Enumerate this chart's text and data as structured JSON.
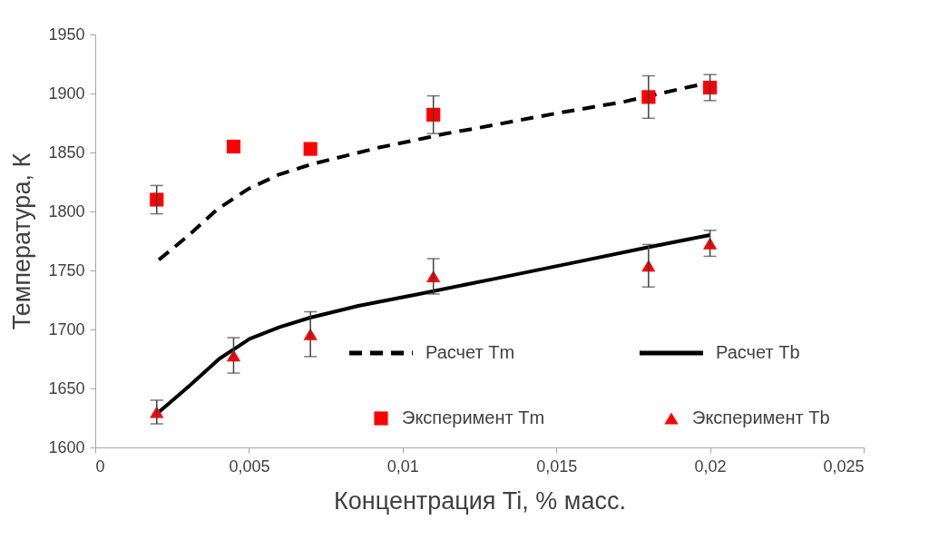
{
  "chart_data": {
    "type": "line",
    "xlabel": "Концентрация Ti, % масс.",
    "ylabel": "Температура, К",
    "xlim": [
      0,
      0.025
    ],
    "xticks": [
      0,
      {
        "value": 0.005,
        "label": "0,005"
      },
      {
        "value": 0.01,
        "label": "0,01"
      },
      {
        "value": 0.015,
        "label": "0,015"
      },
      {
        "value": 0.02,
        "label": "0,02"
      },
      {
        "value": 0.025,
        "label": "0,025"
      }
    ],
    "ylim": [
      1600,
      1950
    ],
    "yticks": [
      1600,
      1650,
      1700,
      1750,
      1800,
      1850,
      1900,
      1950
    ],
    "grid": false,
    "legend": "bottom right",
    "series": [
      {
        "name": "Расчет Tm",
        "line_style": "dashed",
        "color": "#000000",
        "x": [
          0.00207,
          0.00305,
          0.00398,
          0.00497,
          0.00595,
          0.00703,
          0.00812,
          0.0092,
          0.01033,
          0.0114,
          0.0125,
          0.01496,
          0.0172,
          0.0194,
          0.02
        ],
        "values": [
          1759,
          1780,
          1802,
          1819,
          1831,
          1840,
          1847,
          1854,
          1860,
          1866,
          1871,
          1883,
          1893,
          1906,
          1909
        ]
      },
      {
        "name": "Расчет Tb",
        "line_style": "solid",
        "color": "#000000",
        "x": [
          0.00207,
          0.00305,
          0.00403,
          0.00502,
          0.006,
          0.00699,
          0.00856,
          0.01053,
          0.013,
          0.01564,
          0.01805,
          0.02
        ],
        "values": [
          1630,
          1652,
          1675,
          1692,
          1702,
          1710,
          1720,
          1730,
          1743,
          1757,
          1770,
          1780
        ]
      },
      {
        "name": "Эксперимент Tm",
        "type": "scatter",
        "marker": "square",
        "color": "#ff0000",
        "x": [
          0.002,
          0.0045,
          0.007,
          0.011,
          0.018,
          0.02
        ],
        "values": [
          1810,
          1855,
          1853,
          1882,
          1897,
          1905
        ],
        "errors": [
          12,
          null,
          null,
          16,
          18,
          11
        ]
      },
      {
        "name": "Эксперимент Tb",
        "type": "scatter",
        "marker": "triangle",
        "color": "#ff0000",
        "x": [
          0.002,
          0.0045,
          0.007,
          0.011,
          0.018,
          0.02
        ],
        "values": [
          1630,
          1678,
          1696,
          1745,
          1754,
          1773
        ],
        "errors": [
          10,
          15,
          19,
          15,
          18,
          11
        ]
      }
    ]
  }
}
